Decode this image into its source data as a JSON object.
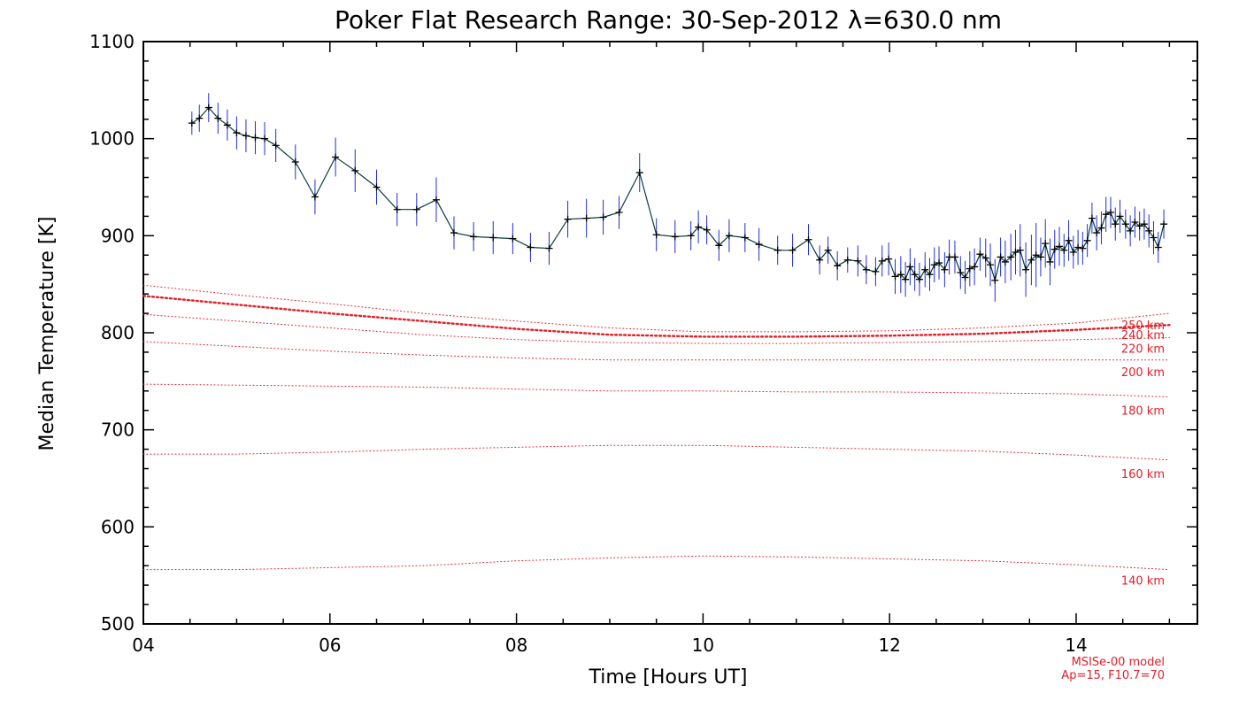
{
  "chart_data": {
    "type": "line",
    "title": "Poker Flat Research Range: 30-Sep-2012 λ=630.0 nm",
    "xlabel": "Time [Hours UT]",
    "ylabel": "Median Temperature [K]",
    "xlim": [
      4,
      15.3
    ],
    "ylim": [
      500,
      1100
    ],
    "x_ticks": [
      4,
      6,
      8,
      10,
      12,
      14
    ],
    "x_tick_labels": [
      "04",
      "06",
      "08",
      "10",
      "12",
      "14"
    ],
    "y_ticks": [
      500,
      600,
      700,
      800,
      900,
      1000,
      1100
    ],
    "y_tick_labels": [
      "500",
      "600",
      "700",
      "800",
      "900",
      "1000",
      "1100"
    ],
    "grid": false,
    "colors": {
      "measured_line": "#0a3d3d",
      "error_bar": "#1f2fd6",
      "marker": "#000000",
      "model": "#e0202a"
    },
    "series": [
      {
        "marker": "plus",
        "x": [
          4.52,
          4.6,
          4.7,
          4.8,
          4.9,
          5.0,
          5.1,
          5.2,
          5.3,
          5.42,
          5.63,
          5.84,
          6.06,
          6.27,
          6.5,
          6.72,
          6.93,
          7.14,
          7.33,
          7.54,
          7.75,
          7.96,
          8.15,
          8.35,
          8.55,
          8.75,
          8.93,
          9.1,
          9.32,
          9.5,
          9.7,
          9.87,
          9.95,
          10.04,
          10.17,
          10.28,
          10.45,
          10.6,
          10.8,
          10.96,
          11.13,
          11.25,
          11.34,
          11.44,
          11.55,
          11.66,
          11.75,
          11.85,
          11.92,
          11.99,
          12.06,
          12.12,
          12.17,
          12.22,
          12.27,
          12.32,
          12.38,
          12.43,
          12.48,
          12.53,
          12.59,
          12.64,
          12.7,
          12.76,
          12.81,
          12.86,
          12.91,
          12.97,
          13.03,
          13.08,
          13.13,
          13.19,
          13.24,
          13.3,
          13.35,
          13.4,
          13.46,
          13.52,
          13.57,
          13.62,
          13.67,
          13.72,
          13.77,
          13.82,
          13.87,
          13.92,
          13.97,
          14.02,
          14.07,
          14.12,
          14.17,
          14.22,
          14.27,
          14.32,
          14.37,
          14.42,
          14.47,
          14.53,
          14.58,
          14.63,
          14.68,
          14.73,
          14.78,
          14.83,
          14.88,
          14.94
        ],
        "y": [
          1016,
          1021,
          1032,
          1021,
          1014,
          1006,
          1003,
          1001,
          1000,
          993,
          976,
          940,
          981,
          967,
          950,
          927,
          927,
          937,
          903,
          899,
          898,
          897,
          888,
          887,
          917,
          918,
          919,
          924,
          965,
          901,
          899,
          900,
          909,
          906,
          890,
          900,
          898,
          891,
          885,
          885,
          896,
          875,
          885,
          869,
          875,
          874,
          865,
          863,
          874,
          876,
          858,
          860,
          855,
          868,
          860,
          855,
          865,
          860,
          870,
          872,
          865,
          878,
          878,
          862,
          857,
          866,
          868,
          881,
          877,
          870,
          854,
          878,
          873,
          878,
          883,
          885,
          865,
          875,
          880,
          878,
          892,
          873,
          886,
          889,
          885,
          895,
          883,
          888,
          887,
          895,
          918,
          903,
          908,
          922,
          924,
          912,
          920,
          912,
          905,
          914,
          910,
          912,
          905,
          898,
          888,
          912
        ],
        "err": [
          12,
          14,
          15,
          16,
          16,
          17,
          17,
          17,
          17,
          17,
          18,
          18,
          20,
          22,
          18,
          17,
          17,
          23,
          17,
          15,
          17,
          16,
          15,
          17,
          19,
          20,
          18,
          17,
          20,
          17,
          17,
          15,
          17,
          15,
          16,
          17,
          15,
          17,
          15,
          17,
          16,
          15,
          14,
          15,
          13,
          16,
          15,
          15,
          16,
          17,
          18,
          19,
          18,
          19,
          17,
          17,
          18,
          17,
          18,
          17,
          18,
          18,
          17,
          17,
          17,
          18,
          19,
          17,
          20,
          22,
          22,
          20,
          22,
          24,
          23,
          27,
          28,
          26,
          33,
          20,
          25,
          24,
          20,
          20,
          17,
          21,
          17,
          18,
          17,
          17,
          16,
          18,
          17,
          18,
          16,
          17,
          17,
          15,
          16,
          16,
          15,
          16,
          17,
          17,
          16,
          15
        ]
      }
    ],
    "model_curves": [
      {
        "label": "140 km",
        "x": [
          4,
          5,
          6,
          7,
          8,
          9,
          10,
          11,
          12,
          13,
          14,
          15
        ],
        "y": [
          556,
          556,
          558,
          560,
          565,
          568,
          570,
          569,
          567,
          565,
          561,
          556
        ]
      },
      {
        "label": "160 km",
        "x": [
          4,
          5,
          6,
          7,
          8,
          9,
          10,
          11,
          12,
          13,
          14,
          15
        ],
        "y": [
          675,
          675,
          677,
          680,
          682,
          684,
          684,
          682,
          680,
          678,
          674,
          669
        ]
      },
      {
        "label": "180 km",
        "x": [
          4,
          5,
          6,
          7,
          8,
          9,
          10,
          11,
          12,
          13,
          14,
          15
        ],
        "y": [
          747,
          746,
          745,
          744,
          742,
          740,
          740,
          739,
          739,
          738,
          737,
          734
        ]
      },
      {
        "label": "200 km",
        "x": [
          4,
          5,
          6,
          7,
          8,
          9,
          10,
          11,
          12,
          13,
          14,
          15
        ],
        "y": [
          791,
          786,
          781,
          777,
          774,
          772,
          772,
          772,
          772,
          772,
          772,
          772
        ]
      },
      {
        "label": "220 km",
        "x": [
          4,
          5,
          6,
          7,
          8,
          9,
          10,
          11,
          12,
          13,
          14,
          15
        ],
        "y": [
          819,
          812,
          805,
          798,
          793,
          790,
          789,
          789,
          790,
          791,
          793,
          795
        ]
      },
      {
        "label": "240 km",
        "x": [
          4,
          5,
          6,
          7,
          8,
          9,
          10,
          11,
          12,
          13,
          14,
          15
        ],
        "y": [
          838,
          829,
          820,
          812,
          804,
          798,
          796,
          796,
          797,
          799,
          803,
          808
        ],
        "bold": true
      },
      {
        "label": "250 km",
        "x": [
          4,
          5,
          6,
          7,
          8,
          9,
          10,
          11,
          12,
          13,
          14,
          15
        ],
        "y": [
          849,
          839,
          830,
          820,
          812,
          805,
          801,
          801,
          802,
          805,
          810,
          820
        ]
      }
    ],
    "model_labels": [
      {
        "text": "250 km",
        "y": 808
      },
      {
        "text": "240 km",
        "y": 798
      },
      {
        "text": "220 km",
        "y": 784
      },
      {
        "text": "200 km",
        "y": 760
      },
      {
        "text": "180 km",
        "y": 720
      },
      {
        "text": "160 km",
        "y": 655
      },
      {
        "text": "140 km",
        "y": 545
      }
    ],
    "annotation": [
      "MSISe-00 model",
      "Ap=15, F10.7=70"
    ]
  }
}
